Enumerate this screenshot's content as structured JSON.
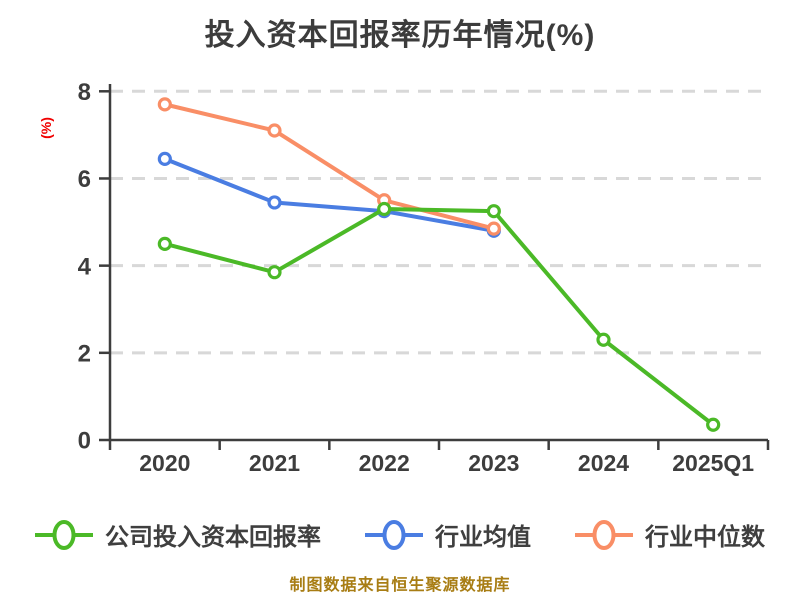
{
  "title": "投入资本回报率历年情况(%)",
  "y_axis_label": "(%)",
  "footer": "制图数据来自恒生聚源数据库",
  "colors": {
    "grid": "#d8d8d8",
    "axis": "#3d3d3d",
    "y_label": "#f00000",
    "footer": "#a87d14",
    "company_green": "#4bb927",
    "industry_avg_blue": "#4a7de2",
    "industry_median_orange": "#f98e66"
  },
  "legend": [
    {
      "label": "公司投入资本回报率"
    },
    {
      "label": "行业均值"
    },
    {
      "label": "行业中位数"
    }
  ],
  "chart_data": {
    "type": "line",
    "title": "投入资本回报率历年情况(%)",
    "categories": [
      "2020",
      "2021",
      "2022",
      "2023",
      "2024",
      "2025Q1"
    ],
    "series": [
      {
        "key": "company",
        "name": "公司投入资本回报率",
        "color": "#4bb927",
        "values": [
          4.5,
          3.85,
          5.3,
          5.25,
          2.3,
          0.35
        ]
      },
      {
        "key": "industry_avg",
        "name": "行业均值",
        "color": "#4a7de2",
        "values": [
          6.45,
          5.45,
          5.25,
          4.8
        ]
      },
      {
        "key": "industry_median",
        "name": "行业中位数",
        "color": "#f98e66",
        "values": [
          7.7,
          7.1,
          5.5,
          4.85
        ]
      }
    ],
    "xlabel": "",
    "ylabel": "(%)",
    "ylim": [
      0,
      8
    ],
    "yticks": [
      0,
      2,
      4,
      6,
      8
    ],
    "grid": "horizontal-dashed",
    "legend_position": "bottom",
    "marker": "open-circle",
    "source_note": "制图数据来自恒生聚源数据库"
  }
}
